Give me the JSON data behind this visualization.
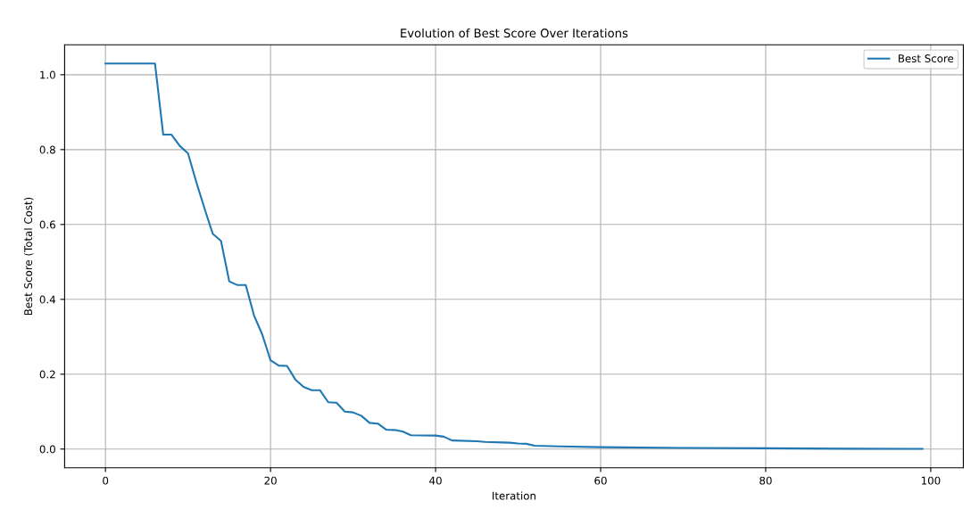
{
  "chart_data": {
    "type": "line",
    "title": "Evolution of Best Score Over Iterations",
    "xlabel": "Iteration",
    "ylabel": "Best Score (Total Cost)",
    "series": [
      {
        "name": "Best Score",
        "color": "#1f77b4",
        "x": [
          0,
          6,
          7,
          8,
          9,
          10,
          11,
          12,
          13,
          14,
          15,
          16,
          17,
          18,
          19,
          20,
          21,
          22,
          23,
          24,
          25,
          26,
          27,
          28,
          29,
          30,
          31,
          32,
          33,
          34,
          35,
          36,
          37,
          40,
          41,
          42,
          45,
          46,
          49,
          50,
          51,
          52,
          55,
          60,
          70,
          80,
          90,
          99
        ],
        "values": [
          1.03,
          1.03,
          0.84,
          0.84,
          0.81,
          0.79,
          0.714,
          0.643,
          0.575,
          0.556,
          0.448,
          0.438,
          0.438,
          0.357,
          0.306,
          0.237,
          0.223,
          0.222,
          0.186,
          0.166,
          0.157,
          0.157,
          0.125,
          0.124,
          0.1,
          0.098,
          0.089,
          0.07,
          0.068,
          0.052,
          0.051,
          0.047,
          0.037,
          0.036,
          0.033,
          0.023,
          0.021,
          0.019,
          0.017,
          0.015,
          0.014,
          0.009,
          0.007,
          0.005,
          0.003,
          0.002,
          0.001,
          0.0005
        ]
      }
    ],
    "xlim": [
      -4.95,
      103.95
    ],
    "xticks": [
      0,
      20,
      40,
      60,
      80,
      100
    ],
    "ylim": [
      -0.05,
      1.08
    ],
    "yticks": [
      {
        "value": 0,
        "label": "0.0"
      },
      {
        "value": 0.2,
        "label": "0.2"
      },
      {
        "value": 0.4,
        "label": "0.4"
      },
      {
        "value": 0.6,
        "label": "0.6"
      },
      {
        "value": 0.8,
        "label": "0.8"
      },
      {
        "value": 1.0,
        "label": "1.0"
      }
    ],
    "grid": true,
    "legend": "top right",
    "line_style": "solid",
    "marker": "none"
  }
}
